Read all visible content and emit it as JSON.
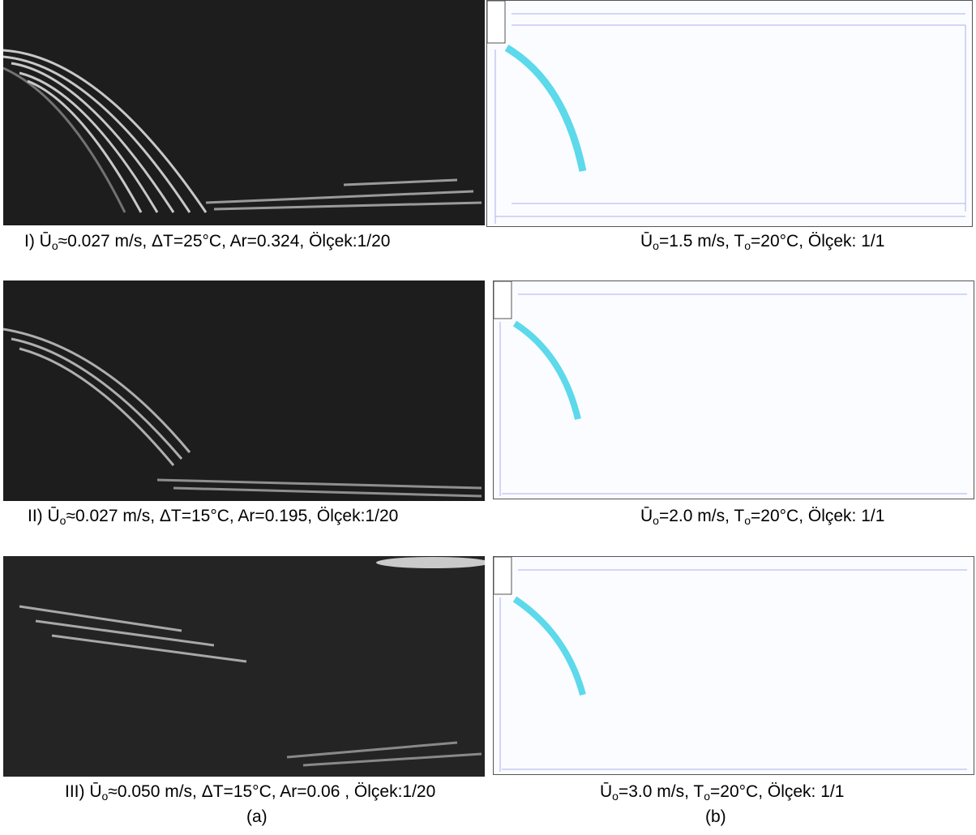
{
  "figure": {
    "rows": [
      {
        "left_caption": {
          "prefix": "I) Ū",
          "sub": "o",
          "rest": "≈0.027 m/s,  ΔT=25°C, Ar=0.324, Ölçek:1/20"
        },
        "right_caption": {
          "prefix": "Ū",
          "sub1": "o",
          "mid": "=1.5 m/s, T",
          "sub2": "o",
          "rest": "=20°C, Ölçek: 1/1"
        }
      },
      {
        "left_caption": {
          "prefix": "II) Ū",
          "sub": "o",
          "rest": "≈0.027 m/s, ΔT=15°C, Ar=0.195, Ölçek:1/20"
        },
        "right_caption": {
          "prefix": "Ū",
          "sub1": "o",
          "mid": "=2.0 m/s, T",
          "sub2": "o",
          "rest": "=20°C, Ölçek: 1/1"
        }
      },
      {
        "left_caption": {
          "prefix": "III) Ū",
          "sub": "o",
          "rest": "≈0.050 m/s, ΔT=15°C, Ar=0.06 , Ölçek:1/20"
        },
        "right_caption": {
          "prefix": "Ū",
          "sub1": "o",
          "mid": "=3.0 m/s, T",
          "sub2": "o",
          "rest": "=20°C, Ölçek: 1/1"
        }
      }
    ],
    "column_labels": {
      "a": "(a)",
      "b": "(b)"
    },
    "colors": {
      "photo_bg": "#1d1d1d",
      "jet_white": "#e8e8e8",
      "vector_blue": "#5560d8",
      "jet_cyan": "#3fd2e6"
    }
  }
}
